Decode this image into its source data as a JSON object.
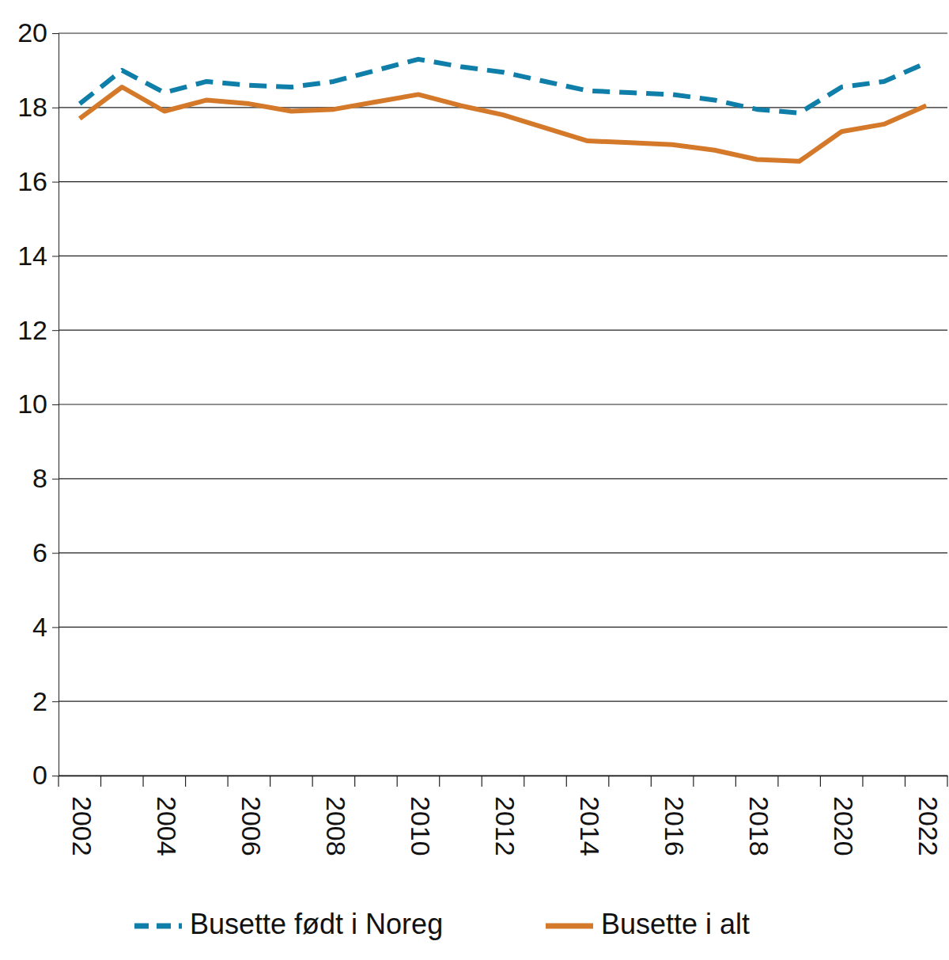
{
  "chart_data": {
    "type": "line",
    "categories": [
      "2002",
      null,
      "2004",
      null,
      "2006",
      null,
      "2008",
      null,
      "2010",
      null,
      "2012",
      null,
      "2014",
      null,
      "2016",
      null,
      "2018",
      null,
      "2020",
      null,
      "2022"
    ],
    "series": [
      {
        "name": "Busette født i Noreg",
        "color": "#0f7ea8",
        "line_style": "dashed",
        "values": [
          18.1,
          19.0,
          18.4,
          18.7,
          18.6,
          18.55,
          18.7,
          19.0,
          19.3,
          19.1,
          18.95,
          18.7,
          18.45,
          18.4,
          18.35,
          18.2,
          17.95,
          17.85,
          18.55,
          18.7,
          19.2
        ]
      },
      {
        "name": "Busette i alt",
        "color": "#d4792a",
        "line_style": "solid",
        "values": [
          17.7,
          18.55,
          17.9,
          18.2,
          18.1,
          17.9,
          17.95,
          18.15,
          18.35,
          18.05,
          17.8,
          17.45,
          17.1,
          17.05,
          17.0,
          16.85,
          16.6,
          16.55,
          17.35,
          17.55,
          18.05
        ]
      }
    ],
    "ylim": [
      0,
      20
    ],
    "yticks": [
      0,
      2,
      4,
      6,
      8,
      10,
      12,
      14,
      16,
      18,
      20
    ],
    "grid": true,
    "legend": "bottom"
  }
}
